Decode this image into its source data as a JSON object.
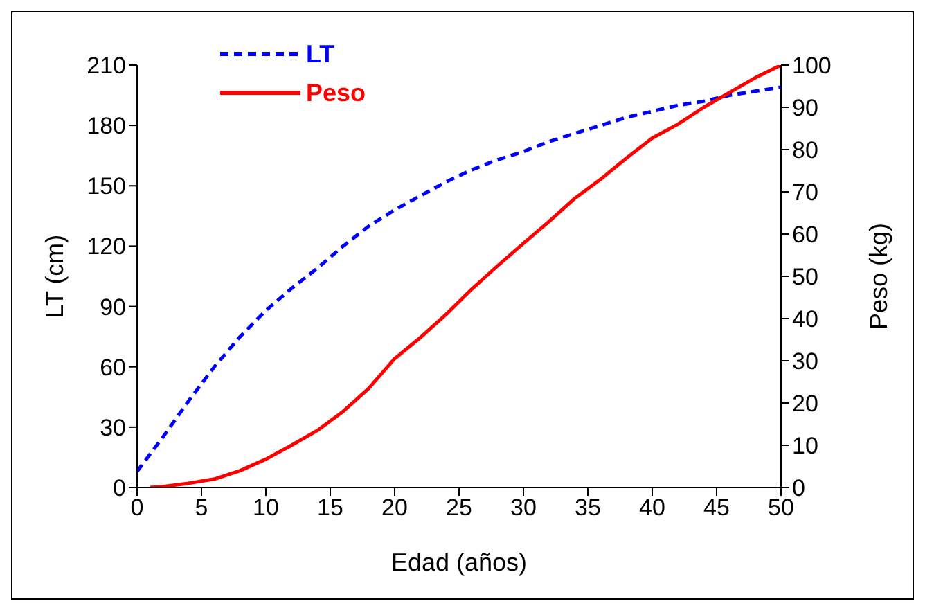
{
  "chart_data": {
    "type": "line",
    "xlabel": "Edad (años)",
    "ylabel": "LT (cm)",
    "y2label": "Peso (kg)",
    "xlim": [
      0,
      50
    ],
    "xticks": [
      0,
      5,
      10,
      15,
      20,
      25,
      30,
      35,
      40,
      45,
      50
    ],
    "ylim": [
      0,
      210
    ],
    "yticks": [
      0,
      30,
      60,
      90,
      120,
      150,
      180,
      210
    ],
    "y2lim": [
      0,
      100
    ],
    "y2ticks": [
      0,
      10,
      20,
      30,
      40,
      50,
      60,
      70,
      80,
      90,
      100
    ],
    "legend": "top left",
    "grid": false,
    "marker": "none",
    "series": [
      {
        "name": "LT",
        "color": "#0000ff",
        "line_style": "dashed",
        "x": [
          0,
          2,
          4,
          6,
          8,
          10,
          12,
          14,
          16,
          18,
          20,
          22,
          24,
          26,
          28,
          30,
          32,
          34,
          36,
          38,
          40,
          42,
          44,
          46,
          48,
          50
        ],
        "values": [
          8,
          25,
          43,
          60,
          75,
          88,
          99,
          109,
          120,
          130,
          138,
          145,
          152,
          158,
          163,
          167,
          172,
          176,
          180,
          184,
          187,
          190,
          192,
          195,
          197,
          199
        ]
      },
      {
        "name": "Peso",
        "color": "#ff0000",
        "line_style": "solid",
        "axis": "y2",
        "x": [
          1,
          2,
          4,
          6,
          8,
          10,
          12,
          14,
          16,
          18,
          20,
          22,
          24,
          26,
          28,
          30,
          32,
          34,
          36,
          38,
          40,
          42,
          44,
          46,
          48,
          50
        ],
        "values": [
          0,
          0.2,
          1,
          2,
          4,
          6.7,
          10,
          13.5,
          18,
          23.5,
          30.5,
          35.5,
          41,
          47,
          52.5,
          57.8,
          63,
          68.5,
          73,
          78,
          82.7,
          86,
          90,
          93.5,
          97,
          100
        ]
      }
    ]
  }
}
